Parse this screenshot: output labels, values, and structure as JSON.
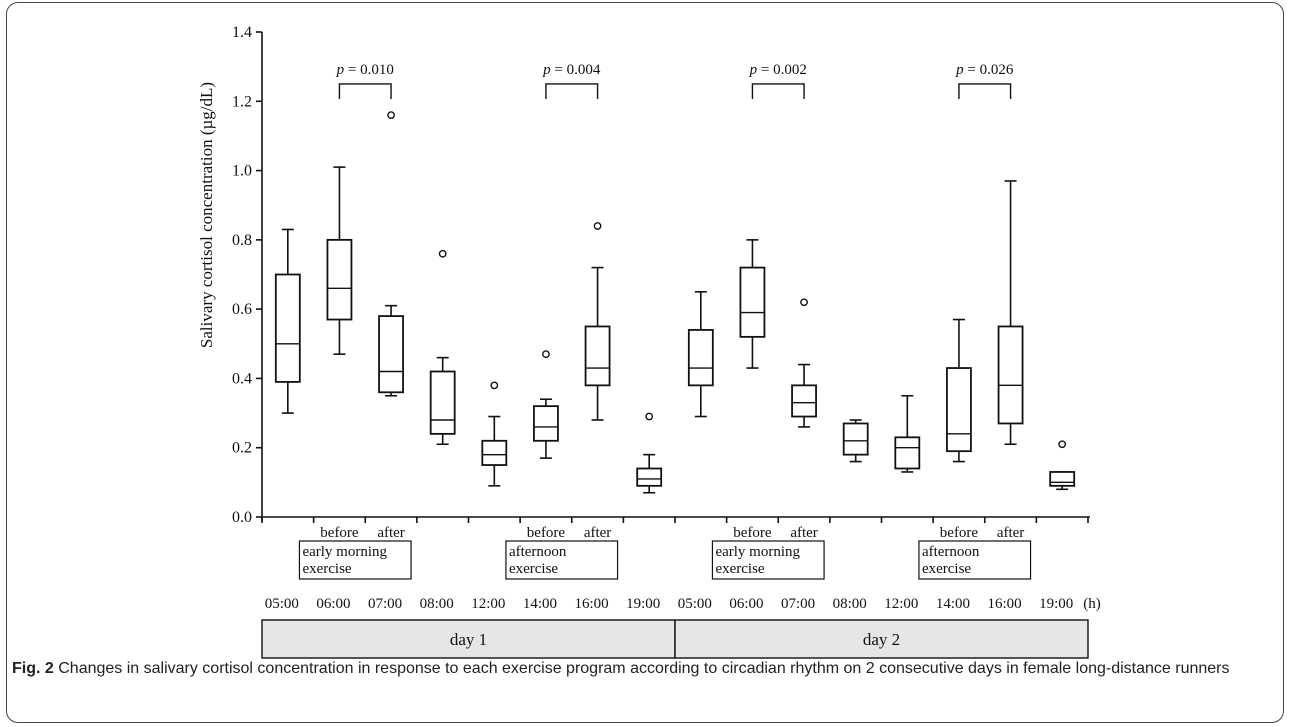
{
  "figure": {
    "caption_label": "Fig. 2",
    "caption_text": "Changes in salivary cortisol concentration in response to each exercise program according to circadian rhythm on 2 consecutive days in female long-distance runners"
  },
  "chart_data": {
    "type": "box",
    "ylabel": "Salivary cortisol concentration (µg/dL)",
    "ylim": [
      0,
      1.4
    ],
    "yticks": [
      "0.0",
      "0.2",
      "0.4",
      "0.6",
      "0.8",
      "1.0",
      "1.2",
      "1.4"
    ],
    "time_unit": "(h)",
    "boxes": [
      {
        "time": "05:00",
        "day": "day 1",
        "whisker_low": 0.3,
        "q1": 0.39,
        "median": 0.5,
        "q3": 0.7,
        "whisker_high": 0.83,
        "outliers": []
      },
      {
        "time": "06:00",
        "day": "day 1",
        "whisker_low": 0.47,
        "q1": 0.57,
        "median": 0.66,
        "q3": 0.8,
        "whisker_high": 1.01,
        "outliers": []
      },
      {
        "time": "07:00",
        "day": "day 1",
        "whisker_low": 0.35,
        "q1": 0.36,
        "median": 0.42,
        "q3": 0.58,
        "whisker_high": 0.61,
        "outliers": [
          1.16
        ]
      },
      {
        "time": "08:00",
        "day": "day 1",
        "whisker_low": 0.21,
        "q1": 0.24,
        "median": 0.28,
        "q3": 0.42,
        "whisker_high": 0.46,
        "outliers": [
          0.76
        ]
      },
      {
        "time": "12:00",
        "day": "day 1",
        "whisker_low": 0.09,
        "q1": 0.15,
        "median": 0.18,
        "q3": 0.22,
        "whisker_high": 0.29,
        "outliers": [
          0.38
        ]
      },
      {
        "time": "14:00",
        "day": "day 1",
        "whisker_low": 0.17,
        "q1": 0.22,
        "median": 0.26,
        "q3": 0.32,
        "whisker_high": 0.34,
        "outliers": [
          0.47
        ]
      },
      {
        "time": "16:00",
        "day": "day 1",
        "whisker_low": 0.28,
        "q1": 0.38,
        "median": 0.43,
        "q3": 0.55,
        "whisker_high": 0.72,
        "outliers": [
          0.84
        ]
      },
      {
        "time": "19:00",
        "day": "day 1",
        "whisker_low": 0.07,
        "q1": 0.09,
        "median": 0.11,
        "q3": 0.14,
        "whisker_high": 0.18,
        "outliers": [
          0.29
        ]
      },
      {
        "time": "05:00",
        "day": "day 2",
        "whisker_low": 0.29,
        "q1": 0.38,
        "median": 0.43,
        "q3": 0.54,
        "whisker_high": 0.65,
        "outliers": []
      },
      {
        "time": "06:00",
        "day": "day 2",
        "whisker_low": 0.43,
        "q1": 0.52,
        "median": 0.59,
        "q3": 0.72,
        "whisker_high": 0.8,
        "outliers": []
      },
      {
        "time": "07:00",
        "day": "day 2",
        "whisker_low": 0.26,
        "q1": 0.29,
        "median": 0.33,
        "q3": 0.38,
        "whisker_high": 0.44,
        "outliers": [
          0.62
        ]
      },
      {
        "time": "08:00",
        "day": "day 2",
        "whisker_low": 0.16,
        "q1": 0.18,
        "median": 0.22,
        "q3": 0.27,
        "whisker_high": 0.28,
        "outliers": []
      },
      {
        "time": "12:00",
        "day": "day 2",
        "whisker_low": 0.13,
        "q1": 0.14,
        "median": 0.2,
        "q3": 0.23,
        "whisker_high": 0.35,
        "outliers": []
      },
      {
        "time": "14:00",
        "day": "day 2",
        "whisker_low": 0.16,
        "q1": 0.19,
        "median": 0.24,
        "q3": 0.43,
        "whisker_high": 0.57,
        "outliers": []
      },
      {
        "time": "16:00",
        "day": "day 2",
        "whisker_low": 0.21,
        "q1": 0.27,
        "median": 0.38,
        "q3": 0.55,
        "whisker_high": 0.97,
        "outliers": []
      },
      {
        "time": "19:00",
        "day": "day 2",
        "whisker_low": 0.08,
        "q1": 0.09,
        "median": 0.1,
        "q3": 0.13,
        "whisker_high": 0.13,
        "outliers": [
          0.21
        ]
      }
    ],
    "comparisons": [
      {
        "from": 1,
        "to": 2,
        "y": 1.25,
        "p_label": "p",
        "p_value": "= 0.010"
      },
      {
        "from": 5,
        "to": 6,
        "y": 1.25,
        "p_label": "p",
        "p_value": "= 0.004"
      },
      {
        "from": 9,
        "to": 10,
        "y": 1.25,
        "p_label": "p",
        "p_value": "= 0.002"
      },
      {
        "from": 13,
        "to": 14,
        "y": 1.25,
        "p_label": "p",
        "p_value": "= 0.026"
      }
    ],
    "exercise_groups": [
      {
        "from": 1,
        "to": 2,
        "before": "before",
        "after": "after",
        "lines": [
          "early morning",
          "exercise"
        ]
      },
      {
        "from": 5,
        "to": 6,
        "before": "before",
        "after": "after",
        "lines": [
          "afternoon",
          "exercise"
        ]
      },
      {
        "from": 9,
        "to": 10,
        "before": "before",
        "after": "after",
        "lines": [
          "early morning",
          "exercise"
        ]
      },
      {
        "from": 13,
        "to": 14,
        "before": "before",
        "after": "after",
        "lines": [
          "afternoon",
          "exercise"
        ]
      }
    ],
    "days": [
      "day 1",
      "day 2"
    ]
  }
}
